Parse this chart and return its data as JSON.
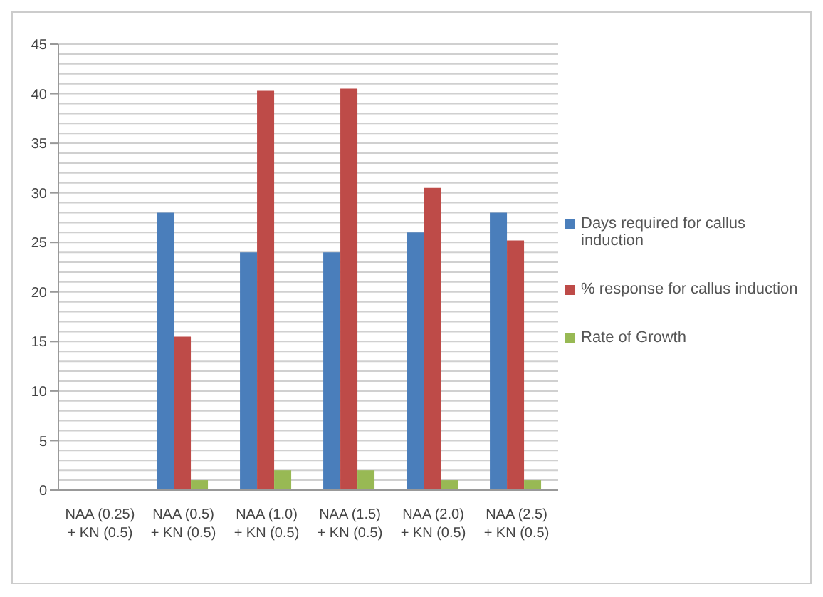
{
  "chart_data": {
    "type": "bar",
    "categories": [
      "NAA (0.25) + KN (0.5)",
      "NAA (0.5) + KN (0.5)",
      "NAA (1.0) + KN (0.5)",
      "NAA (1.5) + KN (0.5)",
      "NAA (2.0) + KN (0.5)",
      "NAA (2.5) + KN (0.5)"
    ],
    "series": [
      {
        "name": "Days required for callus induction",
        "color": "#4a7ebb",
        "values": [
          0,
          28,
          24,
          24,
          26,
          28
        ]
      },
      {
        "name": "% response for callus induction",
        "color": "#be4b48",
        "values": [
          0,
          15.5,
          40.3,
          40.5,
          30.5,
          25.2
        ]
      },
      {
        "name": "Rate of Growth",
        "color": "#98b954",
        "values": [
          0,
          1,
          2,
          2,
          1,
          1
        ]
      }
    ],
    "ylim": [
      0,
      45
    ],
    "yticks": [
      0,
      5,
      10,
      15,
      20,
      25,
      30,
      35,
      40,
      45
    ],
    "grid": "y",
    "legend": "right"
  }
}
